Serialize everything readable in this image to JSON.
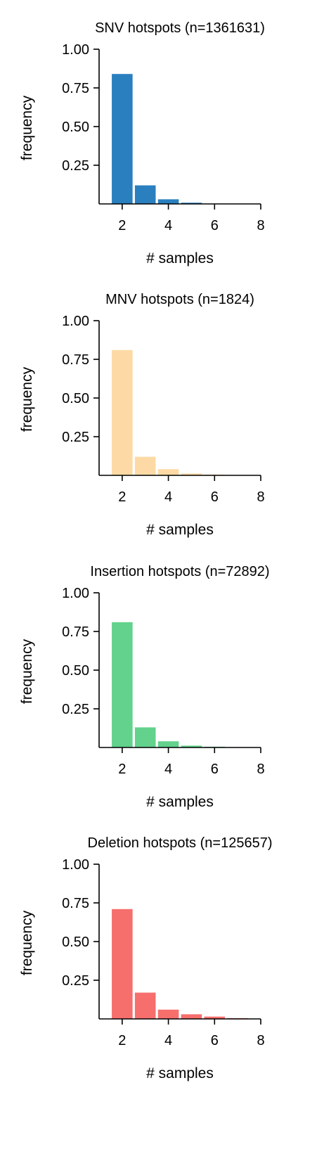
{
  "chart_data": [
    {
      "type": "bar",
      "title": "SNV hotspots (n=1361631)",
      "xlabel": "# samples",
      "ylabel": "frequency",
      "x": [
        2,
        3,
        4,
        5,
        6,
        7
      ],
      "values": [
        0.84,
        0.12,
        0.03,
        0.008,
        0.002,
        0.001
      ],
      "xlim": [
        1,
        8
      ],
      "ylim": [
        0,
        1.0
      ],
      "xticks": [
        "2",
        "4",
        "6",
        "8"
      ],
      "yticks": [
        "0.25",
        "0.50",
        "0.75",
        "1.00"
      ],
      "color": "#2a7fbf"
    },
    {
      "type": "bar",
      "title": "MNV hotspots (n=1824)",
      "xlabel": "# samples",
      "ylabel": "frequency",
      "x": [
        2,
        3,
        4,
        5,
        6,
        7
      ],
      "values": [
        0.81,
        0.12,
        0.04,
        0.012,
        0.005,
        0.002
      ],
      "xlim": [
        1,
        8
      ],
      "ylim": [
        0,
        1.0
      ],
      "xticks": [
        "2",
        "4",
        "6",
        "8"
      ],
      "yticks": [
        "0.25",
        "0.50",
        "0.75",
        "1.00"
      ],
      "color": "#fddaa5"
    },
    {
      "type": "bar",
      "title": "Insertion hotspots (n=72892)",
      "xlabel": "# samples",
      "ylabel": "frequency",
      "x": [
        2,
        3,
        4,
        5,
        6,
        7
      ],
      "values": [
        0.81,
        0.13,
        0.04,
        0.012,
        0.005,
        0.002
      ],
      "xlim": [
        1,
        8
      ],
      "ylim": [
        0,
        1.0
      ],
      "xticks": [
        "2",
        "4",
        "6",
        "8"
      ],
      "yticks": [
        "0.25",
        "0.50",
        "0.75",
        "1.00"
      ],
      "color": "#62d28c"
    },
    {
      "type": "bar",
      "title": "Deletion hotspots (n=125657)",
      "xlabel": "# samples",
      "ylabel": "frequency",
      "x": [
        2,
        3,
        4,
        5,
        6,
        7
      ],
      "values": [
        0.71,
        0.17,
        0.06,
        0.03,
        0.015,
        0.005
      ],
      "xlim": [
        1,
        8
      ],
      "ylim": [
        0,
        1.0
      ],
      "xticks": [
        "2",
        "4",
        "6",
        "8"
      ],
      "yticks": [
        "0.25",
        "0.50",
        "0.75",
        "1.00"
      ],
      "color": "#f66f6d"
    }
  ]
}
